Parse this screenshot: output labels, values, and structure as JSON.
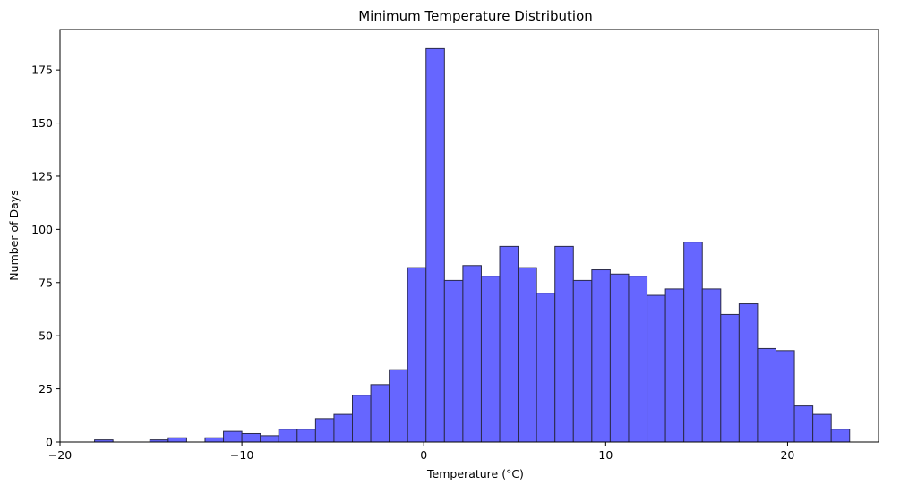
{
  "chart_data": {
    "type": "bar",
    "title": "Minimum Temperature Distribution",
    "xlabel": "Temperature (°C)",
    "ylabel": "Number of Days",
    "xlim": [
      -20,
      25
    ],
    "ylim": [
      0,
      194
    ],
    "x_ticks": [
      -20,
      -10,
      0,
      10,
      20
    ],
    "y_ticks": [
      0,
      25,
      50,
      75,
      100,
      125,
      150,
      175
    ],
    "bin_start": -18.1,
    "bin_width": 1.0125,
    "values": [
      1,
      0,
      0,
      1,
      2,
      0,
      2,
      5,
      4,
      3,
      6,
      6,
      11,
      13,
      22,
      27,
      34,
      82,
      185,
      76,
      83,
      78,
      92,
      82,
      70,
      92,
      76,
      81,
      79,
      78,
      69,
      72,
      94,
      72,
      60,
      65,
      44,
      43,
      17,
      13,
      6
    ],
    "grid": false,
    "colors": {
      "bar_fill": "#6666ff",
      "bar_edge": "#2a2a4a",
      "axis": "#000000"
    }
  }
}
